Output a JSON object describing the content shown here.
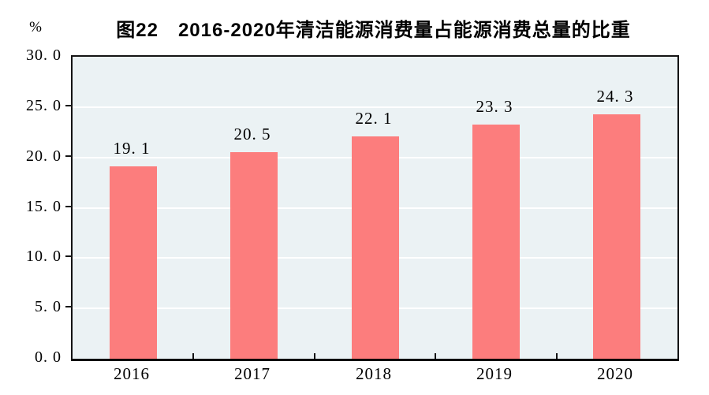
{
  "chart": {
    "unit": "%",
    "title": "图22　2016-2020年清洁能源消费量占能源消费总量的比重"
  },
  "chart_data": {
    "type": "bar",
    "title": "图22　2016-2020年清洁能源消费量占能源消费总量的比重",
    "unit_label": "%",
    "categories": [
      "2016",
      "2017",
      "2018",
      "2019",
      "2020"
    ],
    "values": [
      19.1,
      20.5,
      22.1,
      23.3,
      24.3
    ],
    "value_labels": [
      "19. 1",
      "20. 5",
      "22. 1",
      "23. 3",
      "24. 3"
    ],
    "xlabel": "",
    "ylabel": "%",
    "ylim": [
      0,
      30
    ],
    "ytick_step": 5,
    "ytick_labels": [
      "0. 0",
      "5. 0",
      "10. 0",
      "15. 0",
      "20. 0",
      "25. 0",
      "30. 0"
    ],
    "grid": true,
    "legend_position": "none",
    "colors": {
      "bar": "#FC7D7D",
      "plot_background": "#EBF2F4",
      "gridline": "#FFFFFF",
      "axis": "#141414",
      "text": "#000000"
    }
  }
}
